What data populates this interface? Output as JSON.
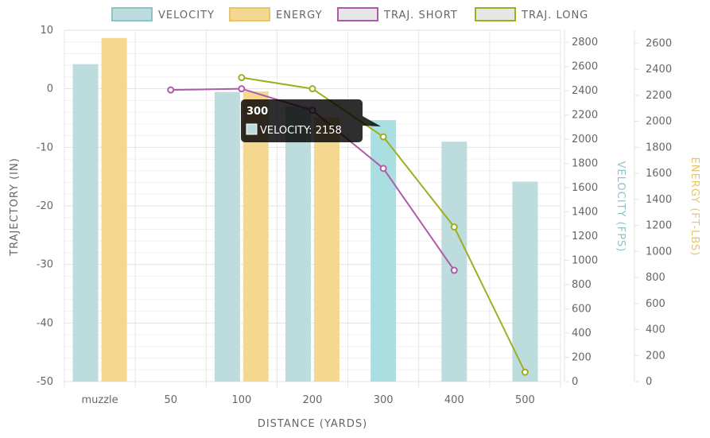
{
  "chart_data": {
    "type": "bar",
    "categories": [
      "muzzle",
      "50",
      "100",
      "200",
      "300",
      "400",
      "500"
    ],
    "series": [
      {
        "name": "VELOCITY",
        "type": "bar",
        "axis": "velocity",
        "values": [
          2620,
          null,
          2390,
          2270,
          2158,
          1980,
          1650
        ]
      },
      {
        "name": "ENERGY",
        "type": "bar",
        "axis": "energy",
        "values": [
          2640,
          null,
          2230,
          2030,
          null,
          null,
          null
        ]
      },
      {
        "name": "TRAJ. SHORT",
        "type": "line",
        "axis": "trajectory",
        "values": [
          null,
          -0.2,
          0.0,
          -3.7,
          -13.6,
          -31.0,
          null
        ]
      },
      {
        "name": "TRAJ. LONG",
        "type": "line",
        "axis": "trajectory",
        "values": [
          null,
          null,
          1.9,
          0.0,
          -8.2,
          -23.6,
          -48.4
        ]
      }
    ],
    "xlabel": "DISTANCE (YARDS)",
    "ylabel_left": "TRAJECTORY (IN)",
    "ylabel_right1": "VELOCITY (FPS)",
    "ylabel_right2": "ENERGY (FT-LBS)",
    "ylim_trajectory": [
      -50,
      10
    ],
    "ylim_velocity": [
      0,
      2900
    ],
    "ylim_energy": [
      0,
      2700
    ],
    "yticks_trajectory": [
      10,
      0,
      -10,
      -20,
      -30,
      -40,
      -50
    ],
    "yticks_velocity": [
      0,
      200,
      400,
      600,
      800,
      1000,
      1200,
      1400,
      1600,
      1800,
      2000,
      2200,
      2400,
      2600,
      2800
    ],
    "yticks_energy": [
      0,
      200,
      400,
      600,
      800,
      1000,
      1200,
      1400,
      1600,
      1800,
      2000,
      2200,
      2400,
      2600
    ],
    "grid": true,
    "legend_position": "top",
    "colors": {
      "velocity": "#bcdcde",
      "velocity_highlight": "#aadfe2",
      "energy": "#f4d88f",
      "traj_short": "#b05ba7",
      "traj_long": "#a1ad20",
      "velocity_title": "#8ec3c6",
      "energy_title": "#e8c46a"
    },
    "tooltip": {
      "title": "300",
      "label": "VELOCITY: 2158"
    }
  }
}
